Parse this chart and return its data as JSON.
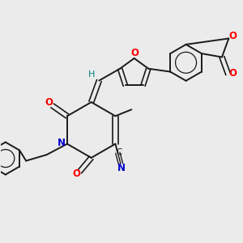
{
  "background_color": "#ebebeb",
  "bond_color": "#1a1a1a",
  "atom_colors": {
    "N": "#0000cc",
    "O": "#ff0000",
    "C": "#1a1a1a",
    "H": "#008080"
  },
  "figsize": [
    3.0,
    3.0
  ],
  "dpi": 100
}
